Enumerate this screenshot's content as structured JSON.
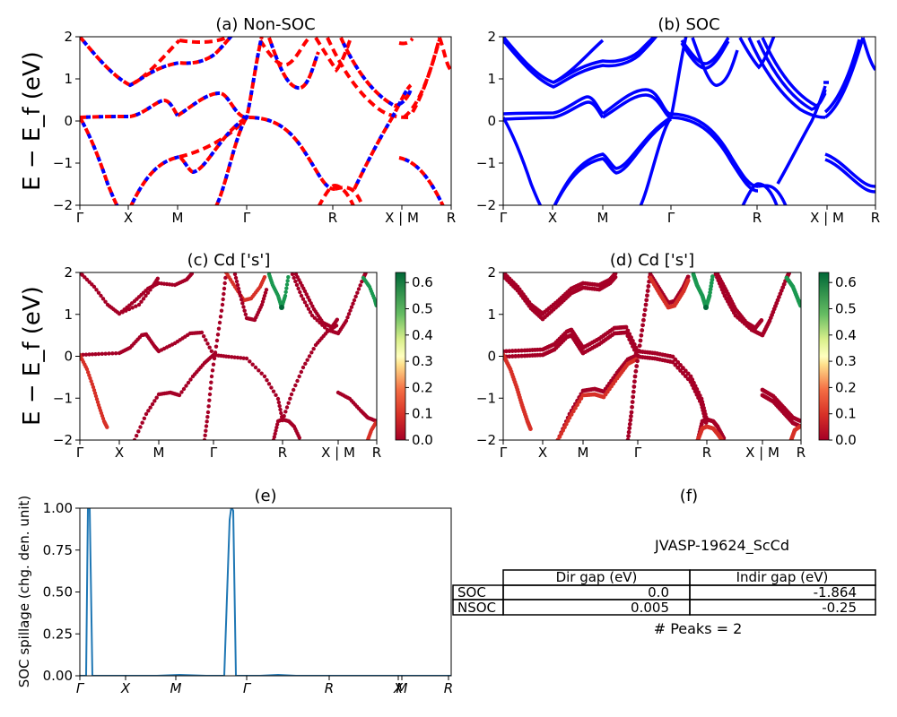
{
  "chart_data": [
    {
      "type": "line",
      "title": "(a) Non-SOC",
      "ylabel": "E − E_f (eV)",
      "ylim": [
        -2,
        2
      ],
      "yticks": [
        "2",
        "1",
        "0",
        "−1",
        "−2"
      ],
      "xticks": [
        "Γ",
        "X",
        "M",
        "Γ",
        "R",
        "X | M",
        "R"
      ],
      "series_colors": [
        "#ff0000",
        "#0000ff"
      ]
    },
    {
      "type": "line",
      "title": "(b) SOC",
      "ylim": [
        -2,
        2
      ],
      "yticks": [
        "2",
        "1",
        "0",
        "−1",
        "−2"
      ],
      "xticks": [
        "Γ",
        "X",
        "M",
        "Γ",
        "R",
        "X | M",
        "R"
      ],
      "series_colors": [
        "#0000ff"
      ]
    },
    {
      "type": "scatter",
      "title": "(c)  Cd ['s']",
      "ylabel": "E − E_f (eV)",
      "ylim": [
        -2,
        2
      ],
      "yticks": [
        "2",
        "1",
        "0",
        "−1",
        "−2"
      ],
      "xticks": [
        "Γ",
        "X",
        "M",
        "Γ",
        "R",
        "X | M",
        "R"
      ],
      "colorbar_ticks": [
        "0.6",
        "0.5",
        "0.4",
        "0.3",
        "0.2",
        "0.1",
        "0.0"
      ],
      "colormap": "RdYlGn"
    },
    {
      "type": "scatter",
      "title": "(d) Cd ['s']",
      "ylim": [
        -2,
        2
      ],
      "yticks": [
        "2",
        "1",
        "0",
        "−1",
        "−2"
      ],
      "xticks": [
        "Γ",
        "X",
        "M",
        "Γ",
        "R",
        "X | M",
        "R"
      ],
      "colorbar_ticks": [
        "0.6",
        "0.5",
        "0.4",
        "0.3",
        "0.2",
        "0.1",
        "0.0"
      ],
      "colormap": "RdYlGn"
    },
    {
      "type": "line",
      "title": "(e)",
      "ylabel": "SOC spillage (chg. den. unit)",
      "ylim": [
        0,
        1
      ],
      "yticks": [
        "1.00",
        "0.75",
        "0.50",
        "0.25",
        "0.00"
      ],
      "xticks": [
        "Γ",
        "X",
        "M",
        "Γ",
        "R",
        "X",
        "M",
        "R"
      ],
      "series_colors": [
        "#1f77b4"
      ]
    },
    {
      "type": "table",
      "title": "(f)",
      "subtitle": "JVASP-19624_ScCd",
      "columns": [
        "",
        "Dir gap (eV)",
        "Indir gap (eV)"
      ],
      "rows": [
        [
          "SOC",
          "0.0",
          "-1.864"
        ],
        [
          "NSOC",
          "0.005",
          "-0.25"
        ]
      ],
      "footer": "# Peaks = 2"
    }
  ]
}
